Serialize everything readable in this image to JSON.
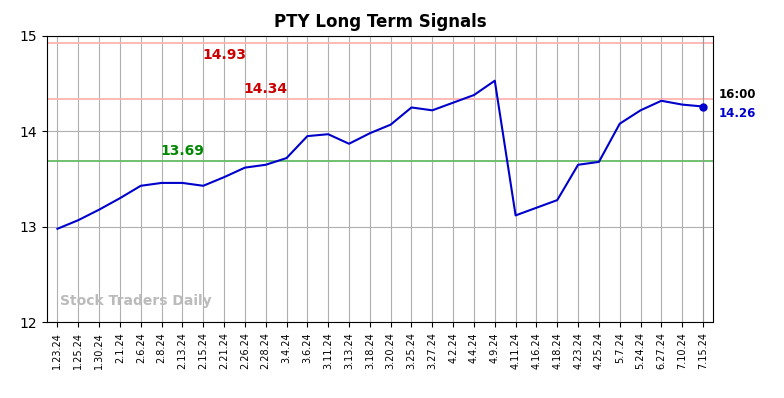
{
  "chart_data": {
    "type": "line",
    "title": "PTY Long Term Signals",
    "categories": [
      "1.23.24",
      "1.25.24",
      "1.30.24",
      "2.1.24",
      "2.6.24",
      "2.8.24",
      "2.13.24",
      "2.15.24",
      "2.21.24",
      "2.26.24",
      "2.28.24",
      "3.4.24",
      "3.6.24",
      "3.11.24",
      "3.13.24",
      "3.18.24",
      "3.20.24",
      "3.25.24",
      "3.27.24",
      "4.2.24",
      "4.4.24",
      "4.9.24",
      "4.11.24",
      "4.16.24",
      "4.18.24",
      "4.23.24",
      "4.25.24",
      "5.7.24",
      "5.24.24",
      "6.27.24",
      "7.10.24",
      "7.15.24"
    ],
    "values": [
      12.98,
      13.07,
      13.18,
      13.3,
      13.43,
      13.46,
      13.46,
      13.43,
      13.52,
      13.62,
      13.65,
      13.72,
      13.95,
      13.97,
      13.87,
      13.98,
      14.07,
      14.25,
      14.22,
      14.3,
      14.38,
      14.53,
      13.12,
      13.2,
      13.28,
      13.65,
      13.68,
      14.08,
      14.22,
      14.32,
      14.28,
      14.26
    ],
    "color": "#0000cc",
    "reference_lines": [
      {
        "value": 14.93,
        "label": "14.93",
        "color": "#ffb3b3",
        "label_color": "#cc0000"
      },
      {
        "value": 14.34,
        "label": "14.34",
        "color": "#ffb3b3",
        "label_color": "#cc0000"
      },
      {
        "value": 13.69,
        "label": "13.69",
        "color": "#66bb66",
        "label_color": "#008800"
      }
    ],
    "last_point": {
      "value": 14.26,
      "label": "14.26",
      "time": "16:00"
    },
    "annotations": [
      "Stock Traders Daily"
    ],
    "ylim": [
      12.0,
      15.0
    ],
    "yticks": [
      12,
      13,
      14,
      15
    ],
    "grid": true
  }
}
